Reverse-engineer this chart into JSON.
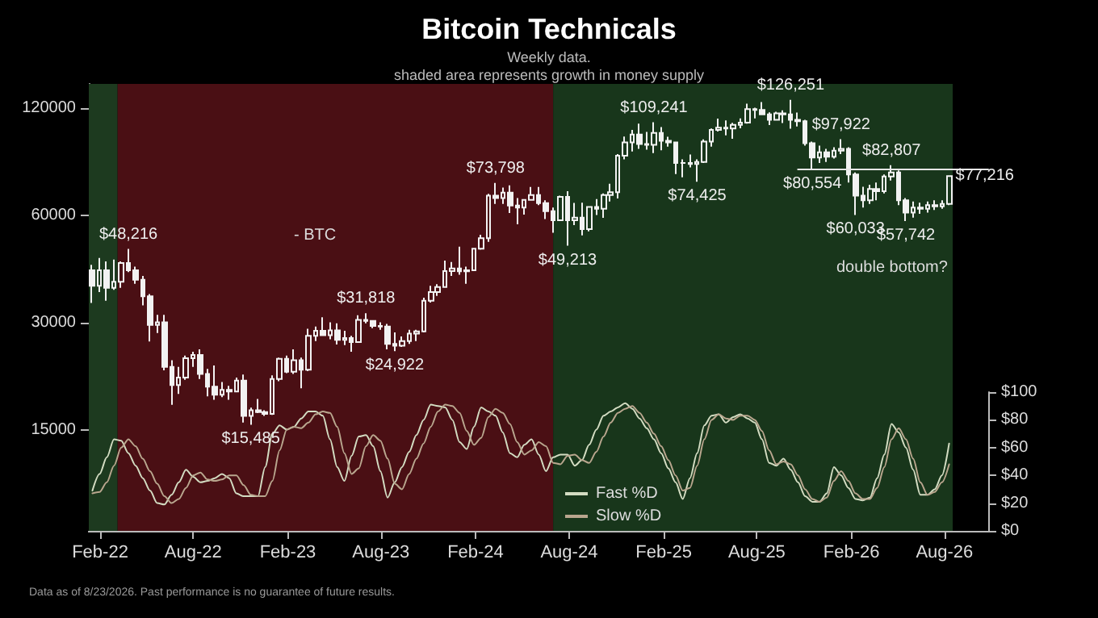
{
  "chart_data": {
    "type": "candlestick",
    "title": "Bitcoin Technicals",
    "subtitle": "Weekly data.\nshaded area represents growth in money supply",
    "annotations": [
      "- BTC",
      "double bottom?",
      "Data as of 8/23/2026. Past performance is no guarantee of future results.",
      {
        "text": "$48,216",
        "x": "2022-03-28",
        "y": 48216
      },
      {
        "text": "$15,485",
        "x": "2022-11-21",
        "y": 15485
      },
      {
        "text": "$31,818",
        "x": "2023-07-03",
        "y": 31818
      },
      {
        "text": "$24,922",
        "x": "2023-08-28",
        "y": 24922
      },
      {
        "text": "$73,798",
        "x": "2024-03-11",
        "y": 73798
      },
      {
        "text": "$49,213",
        "x": "2024-07-29",
        "y": 49213
      },
      {
        "text": "$109,241",
        "x": "2025-01-13",
        "y": 109241
      },
      {
        "text": "$74,425",
        "x": "2025-04-07",
        "y": 74425
      },
      {
        "text": "$126,251",
        "x": "2025-10-06",
        "y": 126251
      },
      {
        "text": "$80,554",
        "x": "2025-11-17",
        "y": 80554
      },
      {
        "text": "$97,922",
        "x": "2026-01-12",
        "y": 97922
      },
      {
        "text": "$60,033",
        "x": "2026-02-09",
        "y": 60033
      },
      {
        "text": "$82,807",
        "x": "2026-04-20",
        "y": 82807
      },
      {
        "text": "$57,742",
        "x": "2026-05-18",
        "y": 57742
      },
      {
        "text": "$77,216",
        "x": "2026-08-10",
        "y": 77216
      }
    ],
    "x": [
      "2022-01-17",
      "2022-01-31",
      "2022-02-14",
      "2022-02-28",
      "2022-03-14",
      "2022-03-28",
      "2022-04-11",
      "2022-04-25",
      "2022-05-09",
      "2022-05-23",
      "2022-06-06",
      "2022-06-20",
      "2022-07-04",
      "2022-07-18",
      "2022-08-01",
      "2022-08-15",
      "2022-08-29",
      "2022-09-12",
      "2022-09-26",
      "2022-10-10",
      "2022-10-24",
      "2022-11-07",
      "2022-11-21",
      "2022-12-05",
      "2022-12-19",
      "2023-01-02",
      "2023-01-16",
      "2023-01-30",
      "2023-02-13",
      "2023-02-27",
      "2023-03-13",
      "2023-03-27",
      "2023-04-10",
      "2023-04-24",
      "2023-05-08",
      "2023-05-22",
      "2023-06-05",
      "2023-06-19",
      "2023-07-03",
      "2023-07-17",
      "2023-07-31",
      "2023-08-14",
      "2023-08-28",
      "2023-09-11",
      "2023-09-25",
      "2023-10-09",
      "2023-10-23",
      "2023-11-06",
      "2023-11-20",
      "2023-12-04",
      "2023-12-18",
      "2024-01-01",
      "2024-01-15",
      "2024-01-29",
      "2024-02-12",
      "2024-02-26",
      "2024-03-11",
      "2024-03-25",
      "2024-04-08",
      "2024-04-22",
      "2024-05-06",
      "2024-05-20",
      "2024-06-03",
      "2024-06-17",
      "2024-07-01",
      "2024-07-15",
      "2024-07-29",
      "2024-08-12",
      "2024-08-26",
      "2024-09-09",
      "2024-09-23",
      "2024-10-07",
      "2024-10-21",
      "2024-11-04",
      "2024-11-18",
      "2024-12-02",
      "2024-12-16",
      "2024-12-30",
      "2025-01-13",
      "2025-01-27",
      "2025-02-10",
      "2025-02-24",
      "2025-03-10",
      "2025-03-24",
      "2025-04-07",
      "2025-04-21",
      "2025-05-05",
      "2025-05-19",
      "2025-06-02",
      "2025-06-16",
      "2025-06-30",
      "2025-07-14",
      "2025-07-28",
      "2025-08-11",
      "2025-08-25",
      "2025-09-08",
      "2025-09-22",
      "2025-10-06",
      "2025-10-20",
      "2025-11-03",
      "2025-11-17",
      "2025-12-01",
      "2025-12-15",
      "2025-12-29",
      "2026-01-12",
      "2026-01-26",
      "2026-02-09",
      "2026-02-23",
      "2026-03-09",
      "2026-03-23",
      "2026-04-06",
      "2026-04-20",
      "2026-05-04",
      "2026-05-18",
      "2026-06-01",
      "2026-06-15",
      "2026-06-29",
      "2026-07-13",
      "2026-07-27",
      "2026-08-10"
    ],
    "ohlc": [
      [
        42000,
        43500,
        34000,
        38000
      ],
      [
        38000,
        45500,
        36500,
        42000
      ],
      [
        42000,
        44500,
        34500,
        37500
      ],
      [
        37500,
        45000,
        37000,
        39000
      ],
      [
        39000,
        44500,
        37500,
        44000
      ],
      [
        44000,
        48216,
        41500,
        42000
      ],
      [
        42000,
        43000,
        38500,
        39500
      ],
      [
        39500,
        40500,
        33500,
        35500
      ],
      [
        35500,
        36000,
        26500,
        29500
      ],
      [
        29500,
        31500,
        28000,
        30000
      ],
      [
        30000,
        31500,
        22000,
        22500
      ],
      [
        22500,
        23500,
        17600,
        20000
      ],
      [
        20000,
        22500,
        18900,
        21000
      ],
      [
        21000,
        24200,
        20700,
        23800
      ],
      [
        23800,
        24800,
        22500,
        24300
      ],
      [
        24300,
        25200,
        20800,
        21500
      ],
      [
        21500,
        22200,
        18600,
        19800
      ],
      [
        19800,
        22700,
        18200,
        18800
      ],
      [
        18800,
        20400,
        18500,
        19400
      ],
      [
        19400,
        19900,
        18200,
        19200
      ],
      [
        19200,
        21000,
        19100,
        20600
      ],
      [
        20600,
        21400,
        15700,
        16400
      ],
      [
        16400,
        17300,
        15485,
        17000
      ],
      [
        17000,
        18300,
        16700,
        16800
      ],
      [
        16800,
        17000,
        16400,
        16600
      ],
      [
        16600,
        21300,
        16500,
        20800
      ],
      [
        20800,
        23900,
        20500,
        23700
      ],
      [
        23700,
        24200,
        21600,
        21800
      ],
      [
        21800,
        25200,
        21500,
        23500
      ],
      [
        23500,
        23900,
        19600,
        22100
      ],
      [
        22100,
        28800,
        21900,
        27500
      ],
      [
        27500,
        29200,
        26600,
        28400
      ],
      [
        28400,
        31000,
        27500,
        27600
      ],
      [
        27600,
        30000,
        26900,
        28500
      ],
      [
        28500,
        29800,
        26000,
        26800
      ],
      [
        26800,
        28400,
        25900,
        27100
      ],
      [
        27100,
        27500,
        24800,
        26400
      ],
      [
        26400,
        31400,
        26300,
        30500
      ],
      [
        30500,
        31818,
        29800,
        30300
      ],
      [
        30300,
        30400,
        28900,
        29300
      ],
      [
        29300,
        30000,
        28600,
        29200
      ],
      [
        29200,
        29700,
        25200,
        26100
      ],
      [
        26100,
        28100,
        24922,
        25800
      ],
      [
        25800,
        27400,
        25600,
        26600
      ],
      [
        26600,
        28600,
        26100,
        27900
      ],
      [
        27900,
        28600,
        26600,
        28300
      ],
      [
        28300,
        35200,
        28100,
        34500
      ],
      [
        34500,
        38000,
        34100,
        36500
      ],
      [
        36500,
        38400,
        35600,
        37700
      ],
      [
        37700,
        44700,
        37600,
        41800
      ],
      [
        41800,
        44300,
        40500,
        42500
      ],
      [
        42500,
        48900,
        40800,
        41700
      ],
      [
        41700,
        43000,
        38500,
        42000
      ],
      [
        42000,
        48500,
        41800,
        48300
      ],
      [
        48300,
        52800,
        48000,
        51700
      ],
      [
        51700,
        68800,
        50500,
        68000
      ],
      [
        68000,
        73798,
        64500,
        67000
      ],
      [
        67000,
        71700,
        64500,
        69400
      ],
      [
        69400,
        72700,
        60800,
        63800
      ],
      [
        63800,
        67000,
        56500,
        63000
      ],
      [
        63000,
        66500,
        60200,
        66200
      ],
      [
        66200,
        71900,
        66000,
        68300
      ],
      [
        68300,
        71900,
        64000,
        64800
      ],
      [
        64800,
        66000,
        58500,
        61500
      ],
      [
        61500,
        63000,
        53500,
        58000
      ],
      [
        58000,
        68000,
        57800,
        67500
      ],
      [
        67500,
        70000,
        49213,
        58000
      ],
      [
        58000,
        64900,
        56200,
        59000
      ],
      [
        59000,
        65000,
        52600,
        54800
      ],
      [
        54800,
        63500,
        54000,
        63200
      ],
      [
        63200,
        66500,
        60000,
        62500
      ],
      [
        62500,
        69000,
        58900,
        68300
      ],
      [
        68300,
        73500,
        65500,
        69500
      ],
      [
        69500,
        89000,
        66800,
        88000
      ],
      [
        88000,
        99600,
        86000,
        96000
      ],
      [
        96000,
        104000,
        90500,
        101000
      ],
      [
        101000,
        108300,
        92000,
        95000
      ],
      [
        95000,
        102700,
        91500,
        94500
      ],
      [
        94500,
        109241,
        89500,
        102000
      ],
      [
        102000,
        106000,
        91200,
        97000
      ],
      [
        97000,
        99500,
        93300,
        96000
      ],
      [
        96000,
        96500,
        78200,
        84000
      ],
      [
        84000,
        86000,
        76600,
        84000
      ],
      [
        84000,
        88700,
        81600,
        83500
      ],
      [
        83500,
        86000,
        74425,
        84500
      ],
      [
        84500,
        97900,
        84000,
        96500
      ],
      [
        96500,
        105000,
        93400,
        104000
      ],
      [
        104000,
        111900,
        103000,
        105500
      ],
      [
        105500,
        110600,
        100400,
        105000
      ],
      [
        105000,
        108900,
        98200,
        107500
      ],
      [
        107500,
        112000,
        105100,
        109000
      ],
      [
        109000,
        123200,
        108300,
        119000
      ],
      [
        119000,
        120000,
        112000,
        118300
      ],
      [
        118300,
        124500,
        114700,
        115000
      ],
      [
        115000,
        116500,
        107300,
        111000
      ],
      [
        111000,
        117000,
        110600,
        115800
      ],
      [
        115800,
        118000,
        108700,
        115000
      ],
      [
        115000,
        126251,
        104800,
        111000
      ],
      [
        111000,
        116400,
        106300,
        110000
      ],
      [
        110000,
        111000,
        94000,
        95500
      ],
      [
        95500,
        96500,
        80554,
        87000
      ],
      [
        87000,
        94000,
        84000,
        90000
      ],
      [
        90000,
        92000,
        84500,
        87500
      ],
      [
        87500,
        93000,
        86500,
        91000
      ],
      [
        91000,
        97922,
        89000,
        92000
      ],
      [
        92000,
        93000,
        74000,
        78000
      ],
      [
        78000,
        79000,
        60033,
        68000
      ],
      [
        68000,
        72000,
        63000,
        66000
      ],
      [
        66000,
        73000,
        64500,
        71000
      ],
      [
        71000,
        74000,
        66000,
        70000
      ],
      [
        70000,
        78000,
        69000,
        77000
      ],
      [
        77000,
        82807,
        75000,
        79000
      ],
      [
        79000,
        80000,
        64000,
        66000
      ],
      [
        66000,
        67000,
        57742,
        61000
      ],
      [
        61000,
        65500,
        59000,
        63000
      ],
      [
        63000,
        65000,
        60500,
        62500
      ],
      [
        62500,
        65500,
        61000,
        64000
      ],
      [
        64000,
        66000,
        62000,
        63500
      ],
      [
        63500,
        66000,
        62500,
        64500
      ],
      [
        64500,
        77216,
        64000,
        77216
      ]
    ],
    "color": "#f2f2f2",
    "series": [
      {
        "name": "Fast %D",
        "type": "line",
        "axis": "y2",
        "color": "#d3dcc2",
        "values": [
          29,
          41,
          53,
          66,
          65,
          56,
          47,
          38,
          29,
          20,
          19,
          26,
          35,
          44,
          39,
          35,
          36,
          38,
          41,
          38,
          27,
          25,
          25,
          25,
          46,
          70,
          76,
          73,
          75,
          81,
          86,
          86,
          83,
          66,
          46,
          36,
          54,
          68,
          69,
          61,
          43,
          24,
          35,
          46,
          57,
          69,
          80,
          91,
          90,
          89,
          80,
          64,
          59,
          75,
          89,
          86,
          83,
          71,
          56,
          53,
          62,
          66,
          55,
          43,
          53,
          55,
          55,
          47,
          51,
          62,
          73,
          83,
          86,
          89,
          92,
          88,
          81,
          74,
          66,
          56,
          45,
          35,
          23,
          38,
          56,
          76,
          83,
          84,
          78,
          82,
          84,
          81,
          78,
          66,
          49,
          47,
          52,
          44,
          35,
          25,
          21,
          21,
          27,
          46,
          40,
          31,
          23,
          22,
          24,
          38,
          55,
          77,
          71,
          60,
          44,
          26,
          26,
          30,
          40,
          63
        ]
      },
      {
        "name": "Slow %D",
        "type": "line",
        "axis": "y2",
        "color": "#b9a68e",
        "values": [
          27,
          28,
          35,
          47,
          60,
          66,
          61,
          52,
          43,
          34,
          25,
          20,
          23,
          31,
          40,
          42,
          37,
          36,
          37,
          40,
          40,
          33,
          26,
          25,
          25,
          36,
          58,
          73,
          75,
          74,
          78,
          84,
          86,
          85,
          75,
          56,
          41,
          45,
          61,
          69,
          65,
          52,
          34,
          30,
          41,
          52,
          63,
          75,
          86,
          91,
          90,
          85,
          72,
          62,
          67,
          82,
          88,
          85,
          77,
          64,
          55,
          58,
          64,
          61,
          49,
          48,
          54,
          55,
          51,
          49,
          57,
          68,
          78,
          85,
          88,
          90,
          85,
          78,
          70,
          61,
          51,
          40,
          29,
          31,
          47,
          66,
          80,
          84,
          81,
          80,
          83,
          83,
          80,
          72,
          58,
          48,
          50,
          48,
          40,
          30,
          23,
          21,
          24,
          36,
          43,
          36,
          27,
          23,
          23,
          31,
          46,
          66,
          74,
          66,
          52,
          35,
          26,
          28,
          35,
          48
        ]
      },
      {
        "type": "line",
        "color": "#e6e6e6",
        "x": [
          "2025-10-20",
          "2026-10-25"
        ],
        "values": [
          80554,
          80554
        ]
      }
    ],
    "bands": [
      {
        "axis": "x",
        "from": "2022-01-10",
        "to": "2022-03-07",
        "color": "#1d3a1f"
      },
      {
        "axis": "x",
        "from": "2022-03-07",
        "to": "2024-07-01",
        "color": "#4a0f14"
      },
      {
        "axis": "x",
        "from": "2024-07-01",
        "to": "2026-08-17",
        "color": "#18361b"
      }
    ],
    "xlim": [
      "2022-01-10",
      "2026-10-25"
    ],
    "xticks": [
      {
        "value": "2022-02-01",
        "label": "Feb-22"
      },
      {
        "value": "2022-08-01",
        "label": "Aug-22"
      },
      {
        "value": "2023-02-01",
        "label": "Feb-23"
      },
      {
        "value": "2023-08-01",
        "label": "Aug-23"
      },
      {
        "value": "2024-02-01",
        "label": "Feb-24"
      },
      {
        "value": "2024-08-01",
        "label": "Aug-24"
      },
      {
        "value": "2025-02-01",
        "label": "Feb-25"
      },
      {
        "value": "2025-08-01",
        "label": "Aug-25"
      },
      {
        "value": "2026-02-01",
        "label": "Feb-26"
      },
      {
        "value": "2026-08-01",
        "label": "Aug-26"
      }
    ],
    "log": true,
    "ylim": [
      7800,
      140000
    ],
    "yticks": [
      15000,
      30000,
      60000,
      120000
    ],
    "y2lim": [
      0,
      100
    ],
    "y2ticks": [
      {
        "value": 0,
        "label": "$0"
      },
      {
        "value": 20,
        "label": "$20"
      },
      {
        "value": 40,
        "label": "$40"
      },
      {
        "value": 60,
        "label": "$60"
      },
      {
        "value": 80,
        "label": "$80"
      },
      {
        "value": 100,
        "label": "$100"
      }
    ],
    "legend": "bottom",
    "marker": "none",
    "line_style": "solid"
  }
}
